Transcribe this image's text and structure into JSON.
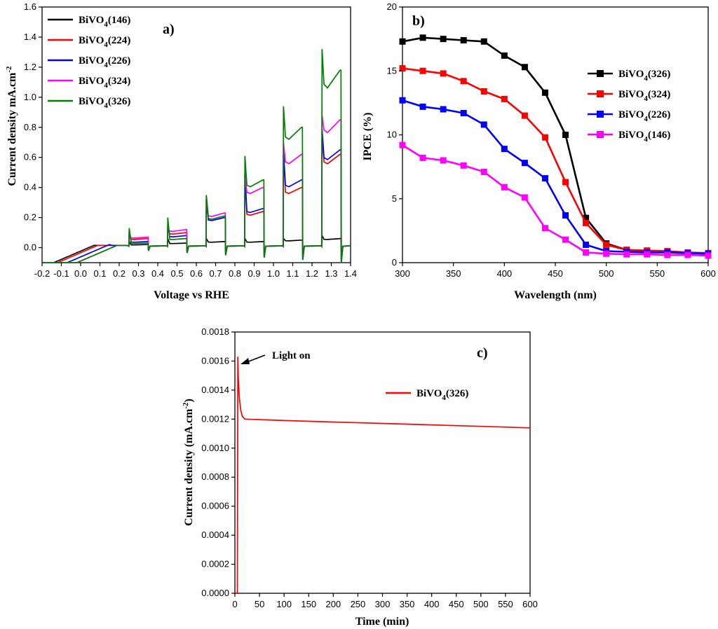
{
  "chart_data": [
    {
      "id": "a",
      "type": "line",
      "panel_label": "a)",
      "xlabel": "Voltage vs RHE",
      "ylabel": "Current density mA.cm",
      "ylabel_sup": "-2",
      "xlim": [
        -0.2,
        1.4
      ],
      "ylim": [
        -0.1,
        1.6
      ],
      "xticks": [
        "-0.2",
        "-0.1",
        "0.0",
        "0.1",
        "0.2",
        "0.3",
        "0.4",
        "0.5",
        "0.6",
        "0.7",
        "0.8",
        "0.9",
        "1.0",
        "1.1",
        "1.2",
        "1.3",
        "1.4"
      ],
      "yticks": [
        "0.0",
        "0.2",
        "0.4",
        "0.6",
        "0.8",
        "1.0",
        "1.2",
        "1.4",
        "1.6"
      ],
      "chopped_light": {
        "on_at": [
          0.25,
          0.45,
          0.65,
          0.85,
          1.05,
          1.25
        ],
        "off_at": [
          0.35,
          0.55,
          0.75,
          0.95,
          1.15,
          1.35
        ]
      },
      "series": [
        {
          "name": "BiVO4(146)",
          "base": "BiVO",
          "sub": "4",
          "rest": "(146)",
          "color": "#000000",
          "onset": -0.12,
          "spikes": [
            0.04,
            0.06,
            0.06,
            0.06,
            0.06,
            0.08
          ],
          "plateaus": [
            0.02,
            0.03,
            0.04,
            0.04,
            0.05,
            0.06
          ]
        },
        {
          "name": "BiVO4(224)",
          "base": "BiVO",
          "sub": "4",
          "rest": "(224)",
          "color": "#ff0000",
          "onset": -0.1,
          "spikes": [
            0.1,
            0.14,
            0.3,
            0.45,
            0.62,
            0.75
          ],
          "plateaus": [
            0.06,
            0.1,
            0.2,
            0.24,
            0.4,
            0.62
          ]
        },
        {
          "name": "BiVO4(226)",
          "base": "BiVO",
          "sub": "4",
          "rest": "(226)",
          "color": "#0000ff",
          "onset": -0.05,
          "spikes": [
            0.11,
            0.15,
            0.32,
            0.5,
            0.65,
            0.79
          ],
          "plateaus": [
            0.04,
            0.08,
            0.2,
            0.26,
            0.45,
            0.65
          ]
        },
        {
          "name": "BiVO4(324)",
          "base": "BiVO",
          "sub": "4",
          "rest": "(324)",
          "color": "#ff00ff",
          "onset": 0.0,
          "spikes": [
            0.09,
            0.13,
            0.34,
            0.48,
            0.7,
            0.88
          ],
          "plateaus": [
            0.07,
            0.12,
            0.23,
            0.4,
            0.62,
            0.85
          ]
        },
        {
          "name": "BiVO4(326)",
          "base": "BiVO",
          "sub": "4",
          "rest": "(326)",
          "color": "#008000",
          "onset": 0.0,
          "spikes": [
            0.13,
            0.2,
            0.35,
            0.61,
            0.94,
            1.32
          ],
          "plateaus": [
            0.03,
            0.06,
            0.21,
            0.45,
            0.8,
            1.18
          ]
        }
      ]
    },
    {
      "id": "b",
      "type": "line",
      "panel_label": "b)",
      "xlabel": "Wavelength (nm)",
      "ylabel": "IPCE (%)",
      "xlim": [
        300,
        600
      ],
      "ylim": [
        0,
        20
      ],
      "xticks": [
        "300",
        "350",
        "400",
        "450",
        "500",
        "550",
        "600"
      ],
      "yticks": [
        "0",
        "5",
        "10",
        "15",
        "20"
      ],
      "x": [
        300,
        320,
        340,
        360,
        380,
        400,
        420,
        440,
        460,
        480,
        500,
        520,
        540,
        560,
        580,
        600
      ],
      "series": [
        {
          "name": "BiVO4(326)",
          "base": "BiVO",
          "sub": "4",
          "rest": "(326)",
          "color": "#000000",
          "values": [
            17.3,
            17.6,
            17.5,
            17.4,
            17.3,
            16.2,
            15.3,
            13.3,
            10.0,
            3.5,
            1.5,
            1.0,
            0.9,
            0.8,
            0.75,
            0.7
          ]
        },
        {
          "name": "BiVO4(324)",
          "base": "BiVO",
          "sub": "4",
          "rest": "(324)",
          "color": "#ff0000",
          "values": [
            15.2,
            15.0,
            14.8,
            14.2,
            13.4,
            12.8,
            11.5,
            9.8,
            6.3,
            3.1,
            1.4,
            1.0,
            0.95,
            0.9,
            0.8,
            0.75
          ]
        },
        {
          "name": "BiVO4(226)",
          "base": "BiVO",
          "sub": "4",
          "rest": "(226)",
          "color": "#0000ff",
          "values": [
            12.7,
            12.2,
            12.0,
            11.7,
            10.8,
            8.9,
            7.8,
            6.6,
            3.7,
            1.4,
            0.9,
            0.85,
            0.8,
            0.8,
            0.75,
            0.7
          ]
        },
        {
          "name": "BiVO4(146)",
          "base": "BiVO",
          "sub": "4",
          "rest": "(146)",
          "color": "#ff00ff",
          "values": [
            9.2,
            8.2,
            8.0,
            7.6,
            7.1,
            5.9,
            5.1,
            2.7,
            1.8,
            0.8,
            0.7,
            0.65,
            0.65,
            0.6,
            0.6,
            0.55
          ]
        }
      ]
    },
    {
      "id": "c",
      "type": "line",
      "panel_label": "c)",
      "xlabel": "Time (min)",
      "ylabel": "Current density (mA.cm",
      "ylabel_sup": "-2",
      "ylabel_end": ")",
      "annotation": "Light on",
      "xlim": [
        0,
        600
      ],
      "ylim": [
        0,
        0.0018
      ],
      "xticks": [
        "0",
        "50",
        "100",
        "150",
        "200",
        "250",
        "300",
        "350",
        "400",
        "450",
        "500",
        "550",
        "600"
      ],
      "yticks": [
        "0.0000",
        "0.0002",
        "0.0004",
        "0.0006",
        "0.0008",
        "0.0010",
        "0.0012",
        "0.0014",
        "0.0016",
        "0.0018"
      ],
      "series": [
        {
          "name": "BiVO4(326)",
          "base": "BiVO",
          "sub": "4",
          "rest": "(326)",
          "color": "#ff0000",
          "x": [
            0,
            3,
            5,
            6,
            7,
            9,
            12,
            15,
            20,
            100,
            200,
            300,
            400,
            500,
            600
          ],
          "values": [
            0.0,
            0.0,
            0.0,
            0.00163,
            0.00148,
            0.00135,
            0.00126,
            0.00122,
            0.0012,
            0.00119,
            0.00118,
            0.00117,
            0.00116,
            0.00115,
            0.00114
          ]
        }
      ]
    }
  ]
}
